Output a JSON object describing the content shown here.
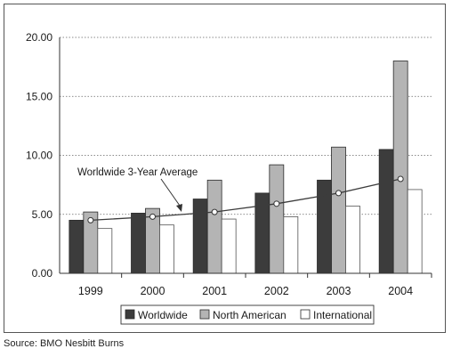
{
  "chart_data": {
    "type": "bar",
    "categories": [
      "1999",
      "2000",
      "2001",
      "2002",
      "2003",
      "2004"
    ],
    "series": [
      {
        "name": "Worldwide",
        "values": [
          4.5,
          5.1,
          6.3,
          6.8,
          7.9,
          10.5
        ],
        "color": "#3c3c3c"
      },
      {
        "name": "North American",
        "values": [
          5.2,
          5.5,
          7.9,
          9.2,
          10.7,
          18.0
        ],
        "color": "#b4b4b4"
      },
      {
        "name": "International",
        "values": [
          3.8,
          4.1,
          4.6,
          4.8,
          5.7,
          7.1
        ],
        "color": "#ffffff"
      }
    ],
    "line": {
      "name": "Worldwide 3-Year Average",
      "values": [
        4.5,
        4.8,
        5.2,
        5.9,
        6.8,
        8.0
      ],
      "color": "#3c3c3c"
    },
    "yticks": [
      "0.00",
      "5.00",
      "10.00",
      "15.00",
      "20.00"
    ],
    "ylim": [
      0,
      20
    ],
    "grid": true,
    "legend": "bottom"
  },
  "annotation": "Worldwide 3-Year Average",
  "source": "Source: BMO Nesbitt Burns"
}
